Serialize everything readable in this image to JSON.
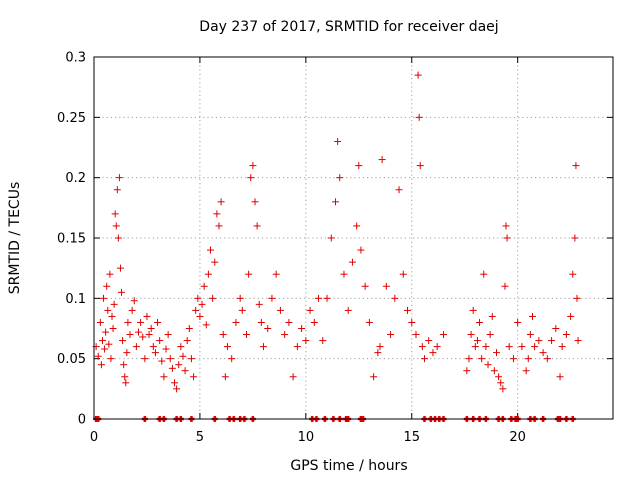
{
  "chart_data": {
    "type": "scatter",
    "title": "Day 237 of 2017, SRMTID for receiver daej",
    "xlabel": "GPS time / hours",
    "ylabel": "SRMTID / TECUs",
    "xlim": [
      0,
      24.5
    ],
    "ylim": [
      0,
      0.3
    ],
    "x_ticks": [
      0,
      5,
      10,
      15,
      20
    ],
    "x_tick_labels": [
      "0",
      "5",
      "10",
      "15",
      "20"
    ],
    "y_ticks": [
      0,
      0.05,
      0.1,
      0.15,
      0.2,
      0.25,
      0.3
    ],
    "y_tick_labels": [
      "0",
      "0.05",
      "0.1",
      "0.15",
      "0.2",
      "0.25",
      "0.3"
    ],
    "grid": true,
    "marker": "plus",
    "color": "#e00000",
    "series": [
      {
        "name": "SRMTID",
        "points": [
          [
            0.1,
            0.06
          ],
          [
            0.2,
            0.052
          ],
          [
            0.3,
            0.08
          ],
          [
            0.35,
            0.045
          ],
          [
            0.4,
            0.065
          ],
          [
            0.45,
            0.1
          ],
          [
            0.5,
            0.058
          ],
          [
            0.55,
            0.072
          ],
          [
            0.6,
            0.11
          ],
          [
            0.65,
            0.09
          ],
          [
            0.7,
            0.062
          ],
          [
            0.75,
            0.12
          ],
          [
            0.8,
            0.05
          ],
          [
            0.85,
            0.085
          ],
          [
            0.9,
            0.075
          ],
          [
            0.95,
            0.095
          ],
          [
            1.0,
            0.17
          ],
          [
            1.05,
            0.16
          ],
          [
            1.1,
            0.19
          ],
          [
            1.15,
            0.15
          ],
          [
            1.2,
            0.2
          ],
          [
            1.25,
            0.125
          ],
          [
            1.3,
            0.105
          ],
          [
            1.35,
            0.065
          ],
          [
            1.4,
            0.045
          ],
          [
            1.45,
            0.035
          ],
          [
            1.5,
            0.03
          ],
          [
            1.55,
            0.055
          ],
          [
            1.6,
            0.08
          ],
          [
            1.7,
            0.07
          ],
          [
            1.8,
            0.09
          ],
          [
            1.9,
            0.098
          ],
          [
            2.0,
            0.06
          ],
          [
            2.1,
            0.072
          ],
          [
            2.2,
            0.08
          ],
          [
            2.3,
            0.068
          ],
          [
            2.4,
            0.05
          ],
          [
            2.5,
            0.085
          ],
          [
            2.6,
            0.07
          ],
          [
            2.7,
            0.075
          ],
          [
            2.8,
            0.06
          ],
          [
            2.9,
            0.055
          ],
          [
            3.0,
            0.08
          ],
          [
            3.1,
            0.065
          ],
          [
            3.2,
            0.048
          ],
          [
            3.3,
            0.035
          ],
          [
            3.4,
            0.058
          ],
          [
            3.5,
            0.07
          ],
          [
            3.6,
            0.05
          ],
          [
            3.7,
            0.042
          ],
          [
            3.8,
            0.03
          ],
          [
            3.9,
            0.025
          ],
          [
            4.0,
            0.045
          ],
          [
            4.1,
            0.06
          ],
          [
            4.2,
            0.052
          ],
          [
            4.3,
            0.04
          ],
          [
            4.4,
            0.065
          ],
          [
            4.5,
            0.075
          ],
          [
            4.6,
            0.05
          ],
          [
            4.7,
            0.035
          ],
          [
            4.8,
            0.09
          ],
          [
            4.9,
            0.1
          ],
          [
            5.0,
            0.085
          ],
          [
            5.1,
            0.095
          ],
          [
            5.2,
            0.11
          ],
          [
            5.3,
            0.078
          ],
          [
            5.4,
            0.12
          ],
          [
            5.5,
            0.14
          ],
          [
            5.6,
            0.1
          ],
          [
            5.7,
            0.13
          ],
          [
            5.8,
            0.17
          ],
          [
            5.9,
            0.16
          ],
          [
            6.0,
            0.18
          ],
          [
            6.1,
            0.07
          ],
          [
            6.2,
            0.035
          ],
          [
            6.3,
            0.06
          ],
          [
            6.5,
            0.05
          ],
          [
            6.7,
            0.08
          ],
          [
            6.9,
            0.1
          ],
          [
            7.0,
            0.09
          ],
          [
            7.2,
            0.07
          ],
          [
            7.3,
            0.12
          ],
          [
            7.4,
            0.2
          ],
          [
            7.5,
            0.21
          ],
          [
            7.6,
            0.18
          ],
          [
            7.7,
            0.16
          ],
          [
            7.8,
            0.095
          ],
          [
            7.9,
            0.08
          ],
          [
            8.0,
            0.06
          ],
          [
            8.2,
            0.075
          ],
          [
            8.4,
            0.1
          ],
          [
            8.6,
            0.12
          ],
          [
            8.8,
            0.09
          ],
          [
            9.0,
            0.07
          ],
          [
            9.2,
            0.08
          ],
          [
            9.4,
            0.035
          ],
          [
            9.6,
            0.06
          ],
          [
            9.8,
            0.075
          ],
          [
            10.0,
            0.065
          ],
          [
            10.2,
            0.09
          ],
          [
            10.4,
            0.08
          ],
          [
            10.6,
            0.1
          ],
          [
            10.8,
            0.065
          ],
          [
            11.0,
            0.1
          ],
          [
            11.2,
            0.15
          ],
          [
            11.4,
            0.18
          ],
          [
            11.5,
            0.23
          ],
          [
            11.6,
            0.2
          ],
          [
            11.8,
            0.12
          ],
          [
            12.0,
            0.09
          ],
          [
            12.2,
            0.13
          ],
          [
            12.4,
            0.16
          ],
          [
            12.5,
            0.21
          ],
          [
            12.6,
            0.14
          ],
          [
            12.8,
            0.11
          ],
          [
            13.0,
            0.08
          ],
          [
            13.2,
            0.035
          ],
          [
            13.4,
            0.055
          ],
          [
            13.5,
            0.06
          ],
          [
            13.6,
            0.215
          ],
          [
            13.8,
            0.11
          ],
          [
            14.0,
            0.07
          ],
          [
            14.2,
            0.1
          ],
          [
            14.4,
            0.19
          ],
          [
            14.6,
            0.12
          ],
          [
            14.8,
            0.09
          ],
          [
            15.0,
            0.08
          ],
          [
            15.2,
            0.07
          ],
          [
            15.3,
            0.285
          ],
          [
            15.35,
            0.25
          ],
          [
            15.4,
            0.21
          ],
          [
            15.5,
            0.06
          ],
          [
            15.6,
            0.05
          ],
          [
            15.8,
            0.065
          ],
          [
            16.0,
            0.055
          ],
          [
            16.2,
            0.06
          ],
          [
            16.5,
            0.07
          ],
          [
            17.6,
            0.04
          ],
          [
            17.7,
            0.05
          ],
          [
            17.8,
            0.07
          ],
          [
            17.9,
            0.09
          ],
          [
            18.0,
            0.06
          ],
          [
            18.1,
            0.065
          ],
          [
            18.2,
            0.08
          ],
          [
            18.3,
            0.05
          ],
          [
            18.4,
            0.12
          ],
          [
            18.5,
            0.06
          ],
          [
            18.6,
            0.045
          ],
          [
            18.7,
            0.07
          ],
          [
            18.8,
            0.085
          ],
          [
            18.9,
            0.04
          ],
          [
            19.0,
            0.055
          ],
          [
            19.1,
            0.035
          ],
          [
            19.2,
            0.03
          ],
          [
            19.3,
            0.025
          ],
          [
            19.4,
            0.11
          ],
          [
            19.45,
            0.16
          ],
          [
            19.5,
            0.15
          ],
          [
            19.6,
            0.06
          ],
          [
            19.8,
            0.05
          ],
          [
            20.0,
            0.08
          ],
          [
            20.2,
            0.06
          ],
          [
            20.4,
            0.04
          ],
          [
            20.5,
            0.05
          ],
          [
            20.6,
            0.07
          ],
          [
            20.7,
            0.085
          ],
          [
            20.8,
            0.06
          ],
          [
            21.0,
            0.065
          ],
          [
            21.2,
            0.055
          ],
          [
            21.4,
            0.05
          ],
          [
            21.6,
            0.065
          ],
          [
            21.8,
            0.075
          ],
          [
            22.0,
            0.035
          ],
          [
            22.1,
            0.06
          ],
          [
            22.3,
            0.07
          ],
          [
            22.5,
            0.085
          ],
          [
            22.6,
            0.12
          ],
          [
            22.7,
            0.15
          ],
          [
            22.75,
            0.21
          ],
          [
            22.8,
            0.1
          ],
          [
            22.85,
            0.065
          ]
        ],
        "zero_points_x": [
          0.1,
          0.2,
          2.4,
          3.1,
          3.3,
          3.9,
          4.1,
          4.6,
          5.7,
          6.4,
          6.6,
          6.9,
          7.1,
          7.5,
          10.3,
          10.5,
          10.9,
          11.3,
          11.6,
          11.9,
          12.0,
          12.6,
          12.7,
          15.6,
          15.9,
          16.1,
          16.3,
          16.5,
          17.6,
          17.9,
          18.2,
          18.5,
          19.1,
          19.3,
          19.7,
          19.9,
          20.0,
          20.6,
          20.8,
          21.2,
          21.9,
          22.0,
          22.3,
          22.6
        ]
      }
    ]
  }
}
